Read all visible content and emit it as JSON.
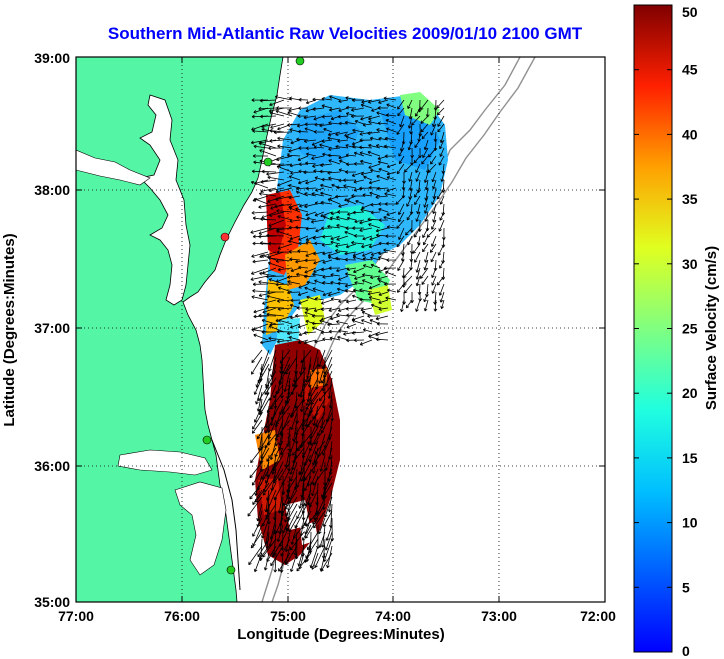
{
  "title": "Southern Mid-Atlantic Raw Velocities 2009/01/10 2100 GMT",
  "chart_data": {
    "type": "heatmap",
    "title": "Southern Mid-Atlantic Raw Velocities 2009/01/10 2100 GMT",
    "xlabel": "Longitude (Degrees:Minutes)",
    "ylabel": "Latitude (Degrees:Minutes)",
    "x_tick_labels": [
      "77:00",
      "76:00",
      "75:00",
      "74:00",
      "73:00",
      "72:00"
    ],
    "y_tick_labels": [
      "39:00",
      "38:00",
      "37:00",
      "36:00",
      "35:00"
    ],
    "xlim": [
      -77,
      -72
    ],
    "ylim": [
      35,
      39
    ],
    "grid": true,
    "colorbar": {
      "label": "Surface Velocity (cm/s)",
      "range": [
        0,
        50
      ],
      "tick_labels": [
        "0",
        "5",
        "10",
        "15",
        "20",
        "25",
        "30",
        "35",
        "40",
        "45",
        "50"
      ]
    }
  },
  "colors": {
    "land": "#55f5a6",
    "frame": "#000000",
    "title": "#0000ff",
    "bathymetry": "#909090"
  }
}
